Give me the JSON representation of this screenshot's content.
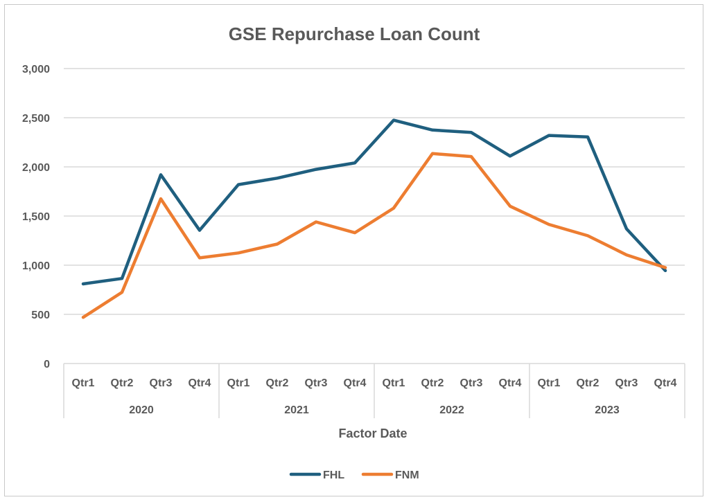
{
  "chart_data": {
    "type": "line",
    "title": "GSE Repurchase Loan Count",
    "xlabel": "Factor Date",
    "ylabel": "",
    "ylim": [
      0,
      3000
    ],
    "yticks": [
      "0",
      "500",
      "1,000",
      "1,500",
      "2,000",
      "2,500",
      "3,000"
    ],
    "ytick_values": [
      0,
      500,
      1000,
      1500,
      2000,
      2500,
      3000
    ],
    "categories": [
      "Qtr1",
      "Qtr2",
      "Qtr3",
      "Qtr4",
      "Qtr1",
      "Qtr2",
      "Qtr3",
      "Qtr4",
      "Qtr1",
      "Qtr2",
      "Qtr3",
      "Qtr4",
      "Qtr1",
      "Qtr2",
      "Qtr3",
      "Qtr4"
    ],
    "groups": [
      {
        "label": "2020",
        "count": 4
      },
      {
        "label": "2021",
        "count": 4
      },
      {
        "label": "2022",
        "count": 4
      },
      {
        "label": "2023",
        "count": 4
      }
    ],
    "grid": true,
    "legend_position": "bottom",
    "series": [
      {
        "name": "FHL",
        "color": "#1f5f7f",
        "values": [
          810,
          865,
          1920,
          1355,
          1820,
          1885,
          1975,
          2040,
          2475,
          2375,
          2350,
          2110,
          2320,
          2305,
          1370,
          945
        ]
      },
      {
        "name": "FNM",
        "color": "#ed7d31",
        "values": [
          470,
          725,
          1675,
          1075,
          1125,
          1215,
          1440,
          1330,
          1580,
          2135,
          2105,
          1600,
          1415,
          1300,
          1105,
          975
        ]
      }
    ]
  }
}
